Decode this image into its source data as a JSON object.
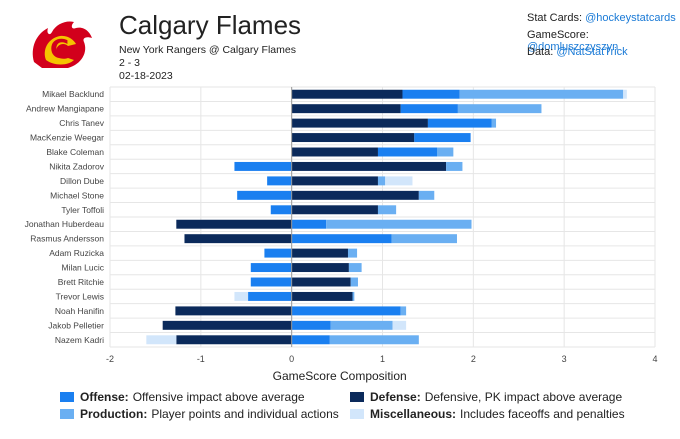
{
  "header": {
    "title": "Calgary Flames",
    "matchup": "New York Rangers @ Calgary Flames",
    "score": "2 - 3",
    "date": "02-18-2023"
  },
  "credits": [
    {
      "label": "Stat Cards:",
      "handle": "@hockeystatcards"
    },
    {
      "label": "GameScore:",
      "handle": "@domluszczyszyn"
    },
    {
      "label": "Data:",
      "handle": "@NatStatTrick"
    }
  ],
  "colors": {
    "defense": "#0b2a5b",
    "offense": "#1a7ff0",
    "production": "#6aaff2",
    "misc": "#d2e6fb",
    "brand_red": "#d2001c",
    "brand_yellow": "#f5c400"
  },
  "legend": [
    {
      "key": "offense",
      "name": "Offense:",
      "desc": "Offensive impact above average"
    },
    {
      "key": "defense",
      "name": "Defense:",
      "desc": "Defensive, PK impact above average"
    },
    {
      "key": "production",
      "name": "Production:",
      "desc": "Player points and individual actions"
    },
    {
      "key": "misc",
      "name": "Miscellaneous:",
      "desc": "Includes faceoffs and penalties"
    }
  ],
  "chart_data": {
    "type": "bar",
    "orientation": "horizontal",
    "stacked": true,
    "xlabel": "GameScore Composition",
    "xlim": [
      -2,
      4
    ],
    "xticks": [
      -2,
      -1,
      0,
      1,
      2,
      3,
      4
    ],
    "categories": [
      "Mikael Backlund",
      "Andrew Mangiapane",
      "Chris Tanev",
      "MacKenzie Weegar",
      "Blake Coleman",
      "Nikita Zadorov",
      "Dillon Dube",
      "Michael Stone",
      "Tyler Toffoli",
      "Jonathan Huberdeau",
      "Rasmus Andersson",
      "Adam Ruzicka",
      "Milan Lucic",
      "Brett Ritchie",
      "Trevor Lewis",
      "Noah Hanifin",
      "Jakob Pelletier",
      "Nazem Kadri"
    ],
    "series": [
      {
        "name": "Defense",
        "key": "defense",
        "values": [
          1.22,
          1.2,
          1.5,
          1.35,
          0.95,
          1.7,
          0.95,
          1.4,
          0.95,
          -1.27,
          -1.18,
          0.62,
          0.63,
          0.65,
          0.67,
          -1.28,
          -1.42,
          -1.27
        ]
      },
      {
        "name": "Offense",
        "key": "offense",
        "values": [
          0.63,
          0.63,
          0.7,
          0.62,
          0.65,
          -0.63,
          -0.27,
          -0.6,
          -0.23,
          0.38,
          1.1,
          -0.3,
          -0.45,
          -0.45,
          -0.48,
          1.2,
          0.43,
          0.42
        ]
      },
      {
        "name": "Production",
        "key": "production",
        "values": [
          1.8,
          0.92,
          0.05,
          0.0,
          0.18,
          0.18,
          0.08,
          0.17,
          0.2,
          1.6,
          0.72,
          0.1,
          0.14,
          0.08,
          0.02,
          0.06,
          0.68,
          0.98
        ]
      },
      {
        "name": "Miscellaneous",
        "key": "misc",
        "values": [
          0.04,
          0.0,
          0.0,
          0.0,
          0.0,
          0.0,
          0.3,
          0.0,
          0.0,
          0.0,
          0.0,
          0.0,
          0.0,
          0.0,
          -0.15,
          0.0,
          0.15,
          -0.33
        ]
      }
    ]
  }
}
